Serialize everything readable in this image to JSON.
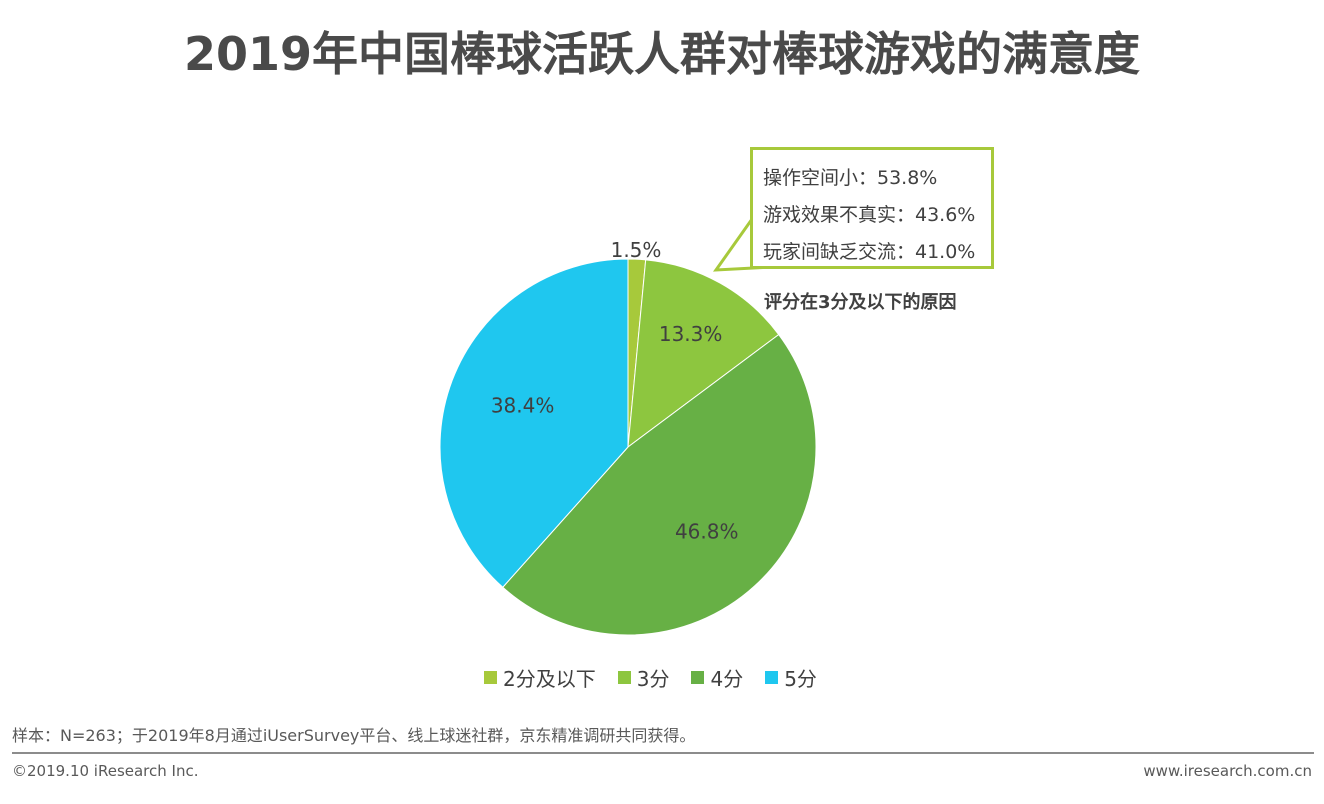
{
  "title": "2019年中国棒球活跃人群对棒球游戏的满意度",
  "chart_data": {
    "type": "pie",
    "categories": [
      "2分及以下",
      "3分",
      "4分",
      "5分"
    ],
    "values": [
      1.5,
      13.3,
      46.8,
      38.4
    ],
    "labels": [
      "1.5%",
      "13.3%",
      "46.8%",
      "38.4%"
    ],
    "colors": [
      "#a7c93b",
      "#8dc63f",
      "#67b045",
      "#1fc7ef"
    ],
    "legend_position": "bottom"
  },
  "callout": {
    "items": [
      "操作空间小：53.8%",
      "游戏效果不真实：43.6%",
      "玩家间缺乏交流：41.0%"
    ],
    "caption": "评分在3分及以下的原因",
    "border_color": "#a7c93b"
  },
  "footer": {
    "source": "样本：N=263；于2019年8月通过iUserSurvey平台、线上球迷社群，京东精准调研共同获得。",
    "copyright": "©2019.10 iResearch Inc.",
    "website": "www.iresearch.com.cn"
  }
}
